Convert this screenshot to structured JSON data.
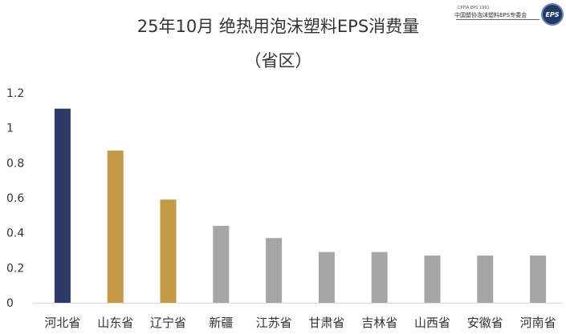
{
  "title": "25年10月 绝热用泡沫塑料EPS消费量",
  "subtitle": "（省区）",
  "logo": {
    "small_text": "CPPIA EPS 1991",
    "org_text": "中国塑协泡沫塑料EPS专委会",
    "seal_text": "EPS"
  },
  "colors": {
    "highlight_navy": "#2b3a67",
    "highlight_gold": "#c39a45",
    "default_gray": "#a6a6a6"
  },
  "chart_data": {
    "type": "bar",
    "title": "25年10月 绝热用泡沫塑料EPS消费量",
    "subtitle": "（省区）",
    "categories": [
      "河北省",
      "山东省",
      "辽宁省",
      "新疆",
      "江苏省",
      "甘肃省",
      "吉林省",
      "山西省",
      "安徽省",
      "河南省"
    ],
    "values": [
      1.11,
      0.87,
      0.59,
      0.44,
      0.37,
      0.29,
      0.29,
      0.27,
      0.27,
      0.27
    ],
    "bar_colors": [
      "#2b3a67",
      "#c39a45",
      "#c39a45",
      "#a6a6a6",
      "#a6a6a6",
      "#a6a6a6",
      "#a6a6a6",
      "#a6a6a6",
      "#a6a6a6",
      "#a6a6a6"
    ],
    "ylim": [
      0,
      1.2
    ],
    "yticks": [
      "0",
      "0.2",
      "0.4",
      "0.6",
      "0.8",
      "1",
      "1.2"
    ],
    "ytick_values": [
      0,
      0.2,
      0.4,
      0.6,
      0.8,
      1.0,
      1.2
    ],
    "grid": false,
    "xlabel": "",
    "ylabel": ""
  }
}
